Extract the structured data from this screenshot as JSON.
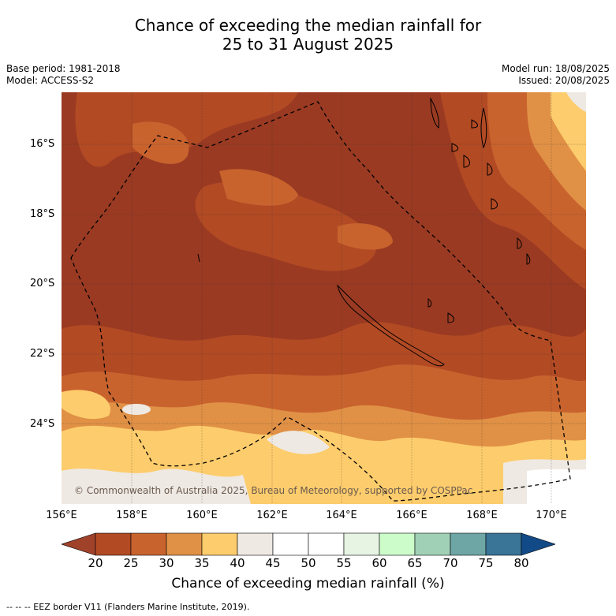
{
  "title_line1": "Chance of exceeding the median rainfall for",
  "title_line2": "25 to 31 August 2025",
  "meta_left": {
    "base_period": "Base period: 1981-2018",
    "model": "Model: ACCESS-S2"
  },
  "meta_right": {
    "model_run": "Model run: 18/08/2025",
    "issued": "Issued: 20/08/2025"
  },
  "lat_labels": [
    "16°S",
    "18°S",
    "20°S",
    "22°S",
    "24°S"
  ],
  "lon_labels": [
    "156°E",
    "158°E",
    "160°E",
    "162°E",
    "164°E",
    "166°E",
    "168°E",
    "170°E"
  ],
  "copyright": "© Commonwealth of Australia 2025, Bureau of Meteorology, supported by COSPPac",
  "colorbar": {
    "ticks": [
      "20",
      "25",
      "30",
      "35",
      "40",
      "45",
      "50",
      "55",
      "60",
      "65",
      "70",
      "75",
      "80"
    ],
    "colors": [
      "#a0422a",
      "#b24a24",
      "#c9632e",
      "#e09146",
      "#fdcc6c",
      "#efe9e3",
      "#ffffff",
      "#ffffff",
      "#e7f4e4",
      "#ccfcca",
      "#a0d0b6",
      "#6ea5a5",
      "#3a7497",
      "#124a87"
    ],
    "label": "Chance of exceeding median rainfall (%)"
  },
  "footer": "--  --  -- EEZ border V11 (Flanders Marine Institute, 2019)."
}
